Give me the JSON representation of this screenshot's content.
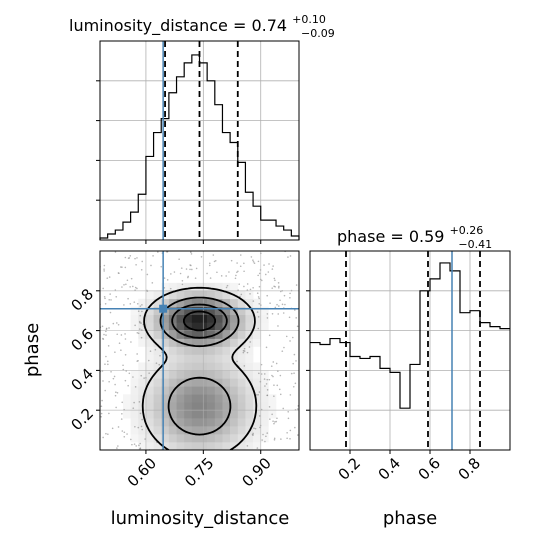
{
  "chart_data": [
    {
      "type": "histogram",
      "panel": "marginal-luminosity_distance",
      "title": {
        "param": "luminosity_distance",
        "value": "0.74",
        "err_plus": "+0.10",
        "err_minus": "−0.09"
      },
      "xlim": [
        0.48,
        1.0
      ],
      "ylim": [
        0,
        1.0
      ],
      "bin_edges": [
        0.48,
        0.5,
        0.52,
        0.54,
        0.56,
        0.58,
        0.6,
        0.62,
        0.64,
        0.66,
        0.68,
        0.7,
        0.72,
        0.74,
        0.76,
        0.78,
        0.8,
        0.82,
        0.84,
        0.86,
        0.88,
        0.9,
        0.92,
        0.94,
        0.96,
        0.98,
        1.0
      ],
      "counts_rel": [
        0.01,
        0.03,
        0.05,
        0.09,
        0.14,
        0.23,
        0.42,
        0.54,
        0.61,
        0.74,
        0.82,
        0.89,
        0.93,
        0.89,
        0.8,
        0.68,
        0.54,
        0.49,
        0.39,
        0.24,
        0.17,
        0.1,
        0.1,
        0.07,
        0.05,
        0.02
      ],
      "quantiles": [
        0.65,
        0.74,
        0.84
      ],
      "truth": 0.645
    },
    {
      "type": "histogram",
      "panel": "marginal-phase",
      "title": {
        "param": "phase",
        "value": "0.59",
        "err_plus": "+0.26",
        "err_minus": "−0.41"
      },
      "xlim": [
        0.0,
        1.0
      ],
      "ylim": [
        0,
        1.0
      ],
      "xlabel": "phase",
      "xticks": [
        0.2,
        0.4,
        0.6,
        0.8
      ],
      "bin_edges": [
        0.0,
        0.05,
        0.1,
        0.15,
        0.2,
        0.25,
        0.3,
        0.35,
        0.4,
        0.45,
        0.5,
        0.55,
        0.6,
        0.65,
        0.7,
        0.75,
        0.8,
        0.85,
        0.9,
        0.95,
        1.0
      ],
      "counts_rel": [
        0.54,
        0.53,
        0.56,
        0.54,
        0.47,
        0.46,
        0.47,
        0.41,
        0.39,
        0.21,
        0.43,
        0.8,
        0.86,
        0.94,
        0.9,
        0.69,
        0.7,
        0.64,
        0.62,
        0.61
      ],
      "quantiles": [
        0.18,
        0.59,
        0.85
      ],
      "truth": 0.71
    },
    {
      "type": "2d-histogram-contour",
      "panel": "joint-luminosity_distance-phase",
      "xlabel": "luminosity_distance",
      "ylabel": "phase",
      "xlim": [
        0.48,
        1.0
      ],
      "ylim": [
        0.0,
        1.0
      ],
      "xticks": [
        0.6,
        0.75,
        0.9
      ],
      "xtick_labels": [
        "0.60",
        "0.75",
        "0.90"
      ],
      "yticks": [
        0.2,
        0.4,
        0.6,
        0.8
      ],
      "ytick_labels": [
        "0.2",
        "0.4",
        "0.6",
        "0.8"
      ],
      "truth": [
        0.645,
        0.71
      ],
      "modes": [
        {
          "x": 0.74,
          "y": 0.65,
          "sx": 0.07,
          "sy": 0.08,
          "peak": 1.0
        },
        {
          "x": 0.74,
          "y": 0.22,
          "sx": 0.085,
          "sy": 0.15,
          "peak": 0.55
        }
      ]
    }
  ],
  "style": {
    "truth_color": "#4682b4",
    "hist_color": "#000000",
    "grid_color": "#b0b0b0"
  }
}
